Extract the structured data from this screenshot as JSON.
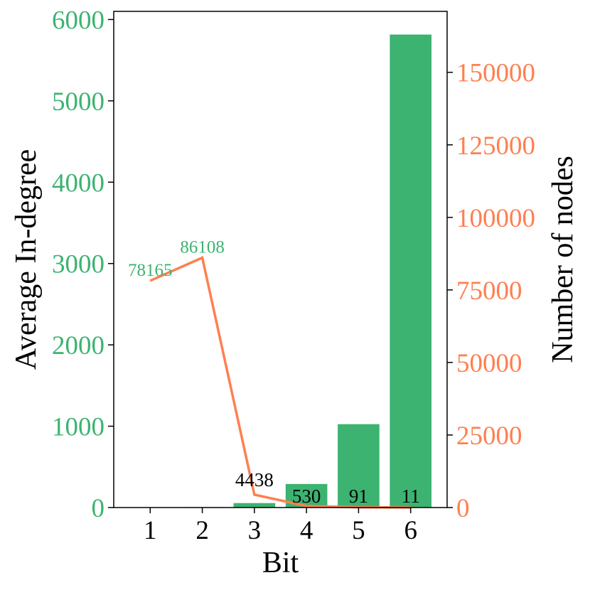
{
  "chart_data": {
    "type": "bar+line",
    "xlabel": "Bit",
    "ylabel_left": "Average In-degree",
    "ylabel_right": "Number of nodes",
    "categories": [
      "1",
      "2",
      "3",
      "4",
      "5",
      "6"
    ],
    "bar_series": {
      "name": "Average In-degree",
      "values": [
        2,
        5,
        55,
        290,
        1025,
        5815
      ]
    },
    "line_series": {
      "name": "Number of nodes",
      "values": [
        78165,
        86108,
        4438,
        530,
        91,
        11
      ],
      "labels": [
        "78165",
        "86108",
        "4438",
        "530",
        "91",
        "11"
      ]
    },
    "left_ylim": [
      0,
      6100
    ],
    "right_ylim": [
      0,
      171000
    ],
    "left_ticks": [
      0,
      1000,
      2000,
      3000,
      4000,
      5000,
      6000
    ],
    "right_ticks": [
      0,
      25000,
      50000,
      75000,
      100000,
      125000,
      150000
    ],
    "colors": {
      "bar": "#3cb371",
      "line": "#ff7f50",
      "left_axis": "#3cb371",
      "right_axis": "#ff7f50",
      "text": "#000000"
    },
    "grid": false,
    "legend": "none"
  }
}
